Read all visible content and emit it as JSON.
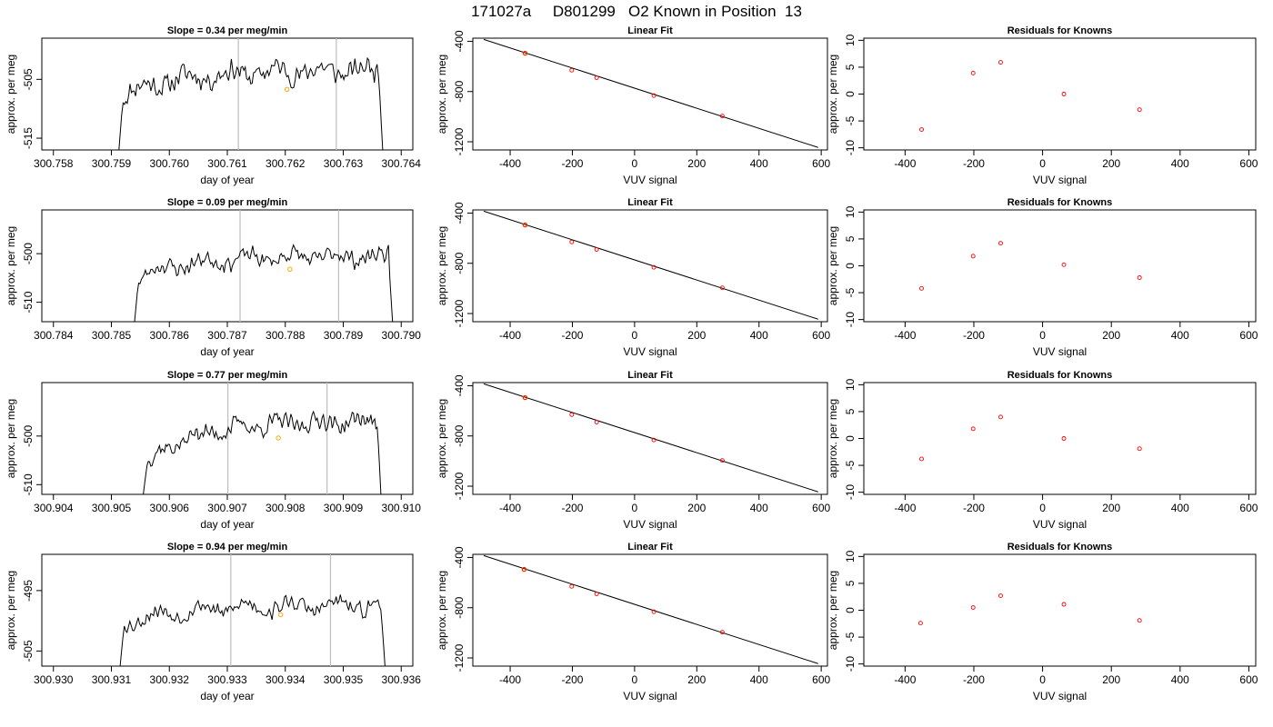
{
  "figure_title": "171027a     D801299   O2 Known in Position  13",
  "colors": {
    "trace": "#000000",
    "marker": "#ffa500",
    "vline": "#bebebe",
    "fit_point": "#ff0000",
    "residual_point": "#ff0000",
    "axes": "#000000"
  },
  "chart_data": [
    {
      "type": "line",
      "row": 0,
      "col": 0,
      "title": "Slope =  0.34  per meg/min",
      "xlabel": "day of year",
      "ylabel": "approx. per meg",
      "xlim": [
        300.7578,
        300.7642
      ],
      "ylim": [
        -517,
        -498
      ],
      "xticks": [
        300.758,
        300.759,
        300.76,
        300.761,
        300.762,
        300.763,
        300.764
      ],
      "xtick_labels": [
        "300.758",
        "300.759",
        "300.760",
        "300.761",
        "300.762",
        "300.763",
        "300.764"
      ],
      "yticks": [
        -505,
        -515
      ],
      "ytick_labels": [
        "-505",
        "-515"
      ],
      "vlines": [
        300.76119,
        300.76288
      ],
      "highlight_point": {
        "x": 300.76203,
        "y": -506.7
      },
      "trace": {
        "x_start": 300.75913,
        "x_end": 300.76368,
        "start_y": -517,
        "base": -508,
        "trend": 4.5,
        "amp": 2.4,
        "end_y": -517,
        "seed": 11
      }
    },
    {
      "type": "scatter",
      "row": 0,
      "col": 1,
      "title": "Linear Fit",
      "xlabel": "VUV signal",
      "ylabel": "approx. per meg",
      "xlim": [
        -520,
        620
      ],
      "ylim": [
        -1265,
        -375
      ],
      "xticks": [
        -400,
        -200,
        0,
        200,
        400,
        600
      ],
      "xtick_labels": [
        "-400",
        "-200",
        "0",
        "200",
        "400",
        "600"
      ],
      "yticks": [
        -400,
        -800,
        -1200
      ],
      "ytick_labels": [
        "-400",
        "-800",
        "-1200"
      ],
      "points_x": [
        -352,
        -202,
        -122,
        62,
        282
      ],
      "points_y": [
        -495,
        -630,
        -690,
        -832,
        -995
      ],
      "highlight_index": 0,
      "fit_line": {
        "x": [
          -485,
          590
        ],
        "y": [
          -385,
          -1245
        ]
      }
    },
    {
      "type": "scatter",
      "row": 0,
      "col": 2,
      "title": "Residuals for Knowns",
      "xlabel": "VUV signal",
      "ylabel": "approx. per meg",
      "xlim": [
        -520,
        620
      ],
      "ylim": [
        -10.4,
        10.4
      ],
      "xticks": [
        -400,
        -200,
        0,
        200,
        400,
        600
      ],
      "xtick_labels": [
        "-400",
        "-200",
        "0",
        "200",
        "400",
        "600"
      ],
      "yticks": [
        -10,
        -5,
        0,
        5,
        10
      ],
      "ytick_labels": [
        "-10",
        "-5",
        "0",
        "5",
        "10"
      ],
      "points_x": [
        -352,
        -202,
        -122,
        62,
        282
      ],
      "points_y": [
        -6.6,
        3.9,
        5.9,
        0.0,
        -2.9
      ]
    },
    {
      "type": "line",
      "row": 1,
      "col": 0,
      "title": "Slope =  0.09  per meg/min",
      "xlabel": "day of year",
      "ylabel": "approx. per meg",
      "xlim": [
        300.7838,
        300.7902
      ],
      "ylim": [
        -514,
        -491
      ],
      "xticks": [
        300.784,
        300.785,
        300.786,
        300.787,
        300.788,
        300.789,
        300.79
      ],
      "xtick_labels": [
        "300.784",
        "300.785",
        "300.786",
        "300.787",
        "300.788",
        "300.789",
        "300.790"
      ],
      "yticks": [
        -500,
        -510
      ],
      "ytick_labels": [
        "-500",
        "-510"
      ],
      "vlines": [
        300.78722,
        300.78892
      ],
      "highlight_point": {
        "x": 300.78808,
        "y": -503.2
      },
      "trace": {
        "x_start": 300.7854,
        "x_end": 300.78985,
        "start_y": -514,
        "base": -505,
        "trend": 4.5,
        "amp": 2.2,
        "end_y": -514,
        "seed": 23
      }
    },
    {
      "type": "scatter",
      "row": 1,
      "col": 1,
      "title": "Linear Fit",
      "xlabel": "VUV signal",
      "ylabel": "approx. per meg",
      "xlim": [
        -520,
        620
      ],
      "ylim": [
        -1265,
        -375
      ],
      "xticks": [
        -400,
        -200,
        0,
        200,
        400,
        600
      ],
      "xtick_labels": [
        "-400",
        "-200",
        "0",
        "200",
        "400",
        "600"
      ],
      "yticks": [
        -400,
        -800,
        -1200
      ],
      "ytick_labels": [
        "-400",
        "-800",
        "-1200"
      ],
      "points_x": [
        -352,
        -202,
        -122,
        62,
        282
      ],
      "points_y": [
        -495,
        -630,
        -690,
        -832,
        -995
      ],
      "highlight_index": 0,
      "fit_line": {
        "x": [
          -485,
          590
        ],
        "y": [
          -385,
          -1245
        ]
      }
    },
    {
      "type": "scatter",
      "row": 1,
      "col": 2,
      "title": "Residuals for Knowns",
      "xlabel": "VUV signal",
      "ylabel": "approx. per meg",
      "xlim": [
        -520,
        620
      ],
      "ylim": [
        -10.4,
        10.4
      ],
      "xticks": [
        -400,
        -200,
        0,
        200,
        400,
        600
      ],
      "xtick_labels": [
        "-400",
        "-200",
        "0",
        "200",
        "400",
        "600"
      ],
      "yticks": [
        -10,
        -5,
        0,
        5,
        10
      ],
      "ytick_labels": [
        "-10",
        "-5",
        "0",
        "5",
        "10"
      ],
      "points_x": [
        -352,
        -202,
        -122,
        62,
        282
      ],
      "points_y": [
        -4.2,
        1.8,
        4.2,
        0.2,
        -2.2
      ]
    },
    {
      "type": "line",
      "row": 2,
      "col": 0,
      "title": "Slope =  0.77  per meg/min",
      "xlabel": "day of year",
      "ylabel": "approx. per meg",
      "xlim": [
        300.9038,
        300.9102
      ],
      "ylim": [
        -512,
        -489
      ],
      "xticks": [
        300.904,
        300.905,
        300.906,
        300.907,
        300.908,
        300.909,
        300.91
      ],
      "xtick_labels": [
        "300.904",
        "300.905",
        "300.906",
        "300.907",
        "300.908",
        "300.909",
        "300.910"
      ],
      "yticks": [
        -500,
        -510
      ],
      "ytick_labels": [
        "-500",
        "-510"
      ],
      "vlines": [
        300.90701,
        300.90872
      ],
      "highlight_point": {
        "x": 300.90788,
        "y": -500.4
      },
      "trace": {
        "x_start": 300.90555,
        "x_end": 300.90965,
        "start_y": -512,
        "base": -506,
        "trend": 9,
        "amp": 2.3,
        "end_y": -512,
        "seed": 37
      }
    },
    {
      "type": "scatter",
      "row": 2,
      "col": 1,
      "title": "Linear Fit",
      "xlabel": "VUV signal",
      "ylabel": "approx. per meg",
      "xlim": [
        -520,
        620
      ],
      "ylim": [
        -1265,
        -375
      ],
      "xticks": [
        -400,
        -200,
        0,
        200,
        400,
        600
      ],
      "xtick_labels": [
        "-400",
        "-200",
        "0",
        "200",
        "400",
        "600"
      ],
      "yticks": [
        -400,
        -800,
        -1200
      ],
      "ytick_labels": [
        "-400",
        "-800",
        "-1200"
      ],
      "points_x": [
        -352,
        -202,
        -122,
        62,
        282
      ],
      "points_y": [
        -495,
        -630,
        -690,
        -832,
        -995
      ],
      "highlight_index": 0,
      "fit_line": {
        "x": [
          -485,
          590
        ],
        "y": [
          -385,
          -1245
        ]
      }
    },
    {
      "type": "scatter",
      "row": 2,
      "col": 2,
      "title": "Residuals for Knowns",
      "xlabel": "VUV signal",
      "ylabel": "approx. per meg",
      "xlim": [
        -520,
        620
      ],
      "ylim": [
        -10.4,
        10.4
      ],
      "xticks": [
        -400,
        -200,
        0,
        200,
        400,
        600
      ],
      "xtick_labels": [
        "-400",
        "-200",
        "0",
        "200",
        "400",
        "600"
      ],
      "yticks": [
        -10,
        -5,
        0,
        5,
        10
      ],
      "ytick_labels": [
        "-10",
        "-5",
        "0",
        "5",
        "10"
      ],
      "points_x": [
        -352,
        -202,
        -122,
        62,
        282
      ],
      "points_y": [
        -3.8,
        1.8,
        4.0,
        0.0,
        -1.9
      ]
    },
    {
      "type": "line",
      "row": 3,
      "col": 0,
      "title": "Slope =  0.94  per meg/min",
      "xlabel": "day of year",
      "ylabel": "approx. per meg",
      "xlim": [
        300.9298,
        300.9362
      ],
      "ylim": [
        -507.5,
        -489
      ],
      "xticks": [
        300.93,
        300.931,
        300.932,
        300.933,
        300.934,
        300.935,
        300.936
      ],
      "xtick_labels": [
        "300.930",
        "300.931",
        "300.932",
        "300.933",
        "300.934",
        "300.935",
        "300.936"
      ],
      "yticks": [
        -495,
        -505
      ],
      "ytick_labels": [
        "-495",
        "-505"
      ],
      "vlines": [
        300.93306,
        300.93478
      ],
      "highlight_point": {
        "x": 300.93392,
        "y": -499
      },
      "trace": {
        "x_start": 300.93115,
        "x_end": 300.93572,
        "start_y": -507.5,
        "base": -500.5,
        "trend": 3,
        "amp": 1.7,
        "end_y": -507.5,
        "seed": 53
      }
    },
    {
      "type": "scatter",
      "row": 3,
      "col": 1,
      "title": "Linear Fit",
      "xlabel": "VUV signal",
      "ylabel": "approx. per meg",
      "xlim": [
        -520,
        620
      ],
      "ylim": [
        -1265,
        -375
      ],
      "xticks": [
        -400,
        -200,
        0,
        200,
        400,
        600
      ],
      "xtick_labels": [
        "-400",
        "-200",
        "0",
        "200",
        "400",
        "600"
      ],
      "yticks": [
        -400,
        -800,
        -1200
      ],
      "ytick_labels": [
        "-400",
        "-800",
        "-1200"
      ],
      "points_x": [
        -355,
        -202,
        -122,
        62,
        282
      ],
      "points_y": [
        -495,
        -630,
        -690,
        -832,
        -995
      ],
      "highlight_index": 0,
      "fit_line": {
        "x": [
          -485,
          590
        ],
        "y": [
          -385,
          -1245
        ]
      }
    },
    {
      "type": "scatter",
      "row": 3,
      "col": 2,
      "title": "Residuals for Knowns",
      "xlabel": "VUV signal",
      "ylabel": "approx. per meg",
      "xlim": [
        -520,
        620
      ],
      "ylim": [
        -10.4,
        10.4
      ],
      "xticks": [
        -400,
        -200,
        0,
        200,
        400,
        600
      ],
      "xtick_labels": [
        "-400",
        "-200",
        "0",
        "200",
        "400",
        "600"
      ],
      "yticks": [
        -10,
        -5,
        0,
        5,
        10
      ],
      "ytick_labels": [
        "-10",
        "-5",
        "0",
        "5",
        "10"
      ],
      "points_x": [
        -355,
        -202,
        -122,
        62,
        282
      ],
      "points_y": [
        -2.4,
        0.5,
        2.7,
        1.1,
        -1.9
      ]
    }
  ]
}
